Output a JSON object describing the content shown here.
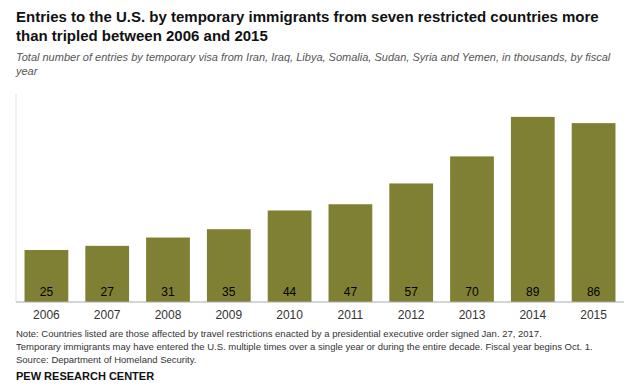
{
  "chart_data": {
    "type": "bar",
    "title": "Entries to the U.S. by temporary immigrants from seven restricted countries more than tripled between 2006 and 2015",
    "subtitle": "Total number of entries by temporary visa from Iran, Iraq, Libya, Somalia, Sudan, Syria and Yemen, in thousands, by fiscal year",
    "annotations": [
      "Note: Countries listed are those affected by travel restrictions enacted by a presidential executive order signed Jan. 27, 2017.",
      "Temporary immigrants may have entered the U.S. multiple times over a single year or during the entire decade. Fiscal year begins Oct. 1.",
      "Source: Department of Homeland Security.",
      "PEW RESEARCH CENTER"
    ],
    "categories": [
      "2006",
      "2007",
      "2008",
      "2009",
      "2010",
      "2011",
      "2012",
      "2013",
      "2014",
      "2015"
    ],
    "values": [
      25,
      27,
      31,
      35,
      44,
      47,
      57,
      70,
      89,
      86
    ],
    "color": "#808035",
    "ylim": [
      0,
      100
    ],
    "grid": false,
    "data_labels": true,
    "tick_labels": "x"
  }
}
